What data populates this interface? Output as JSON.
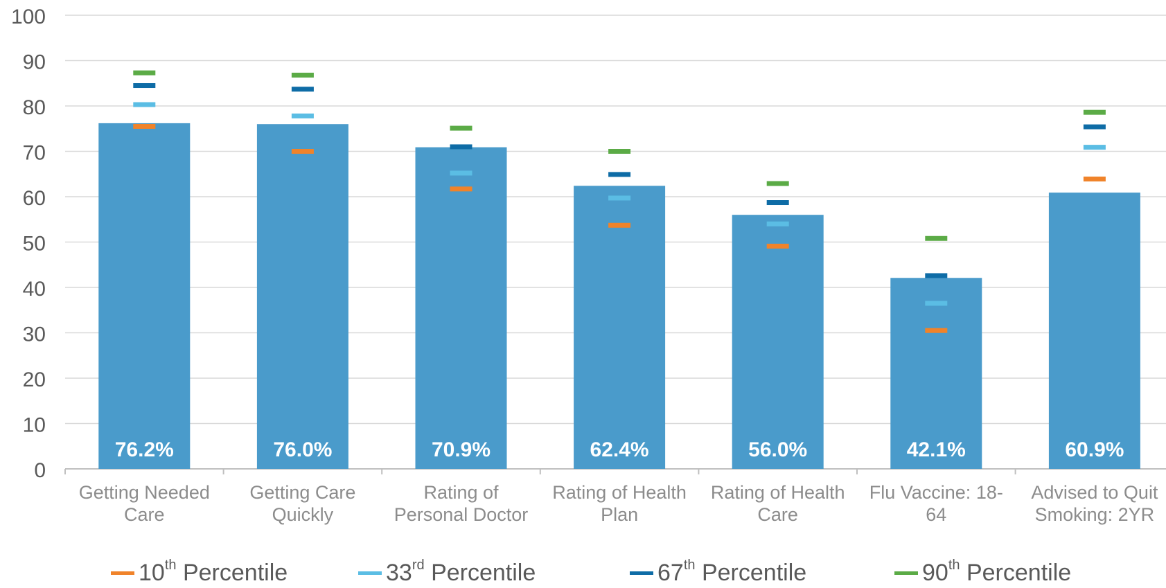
{
  "chart_data": {
    "type": "bar",
    "categories": [
      "Getting Needed Care",
      "Getting Care Quickly",
      "Rating of Personal Doctor",
      "Rating of Health Plan",
      "Rating of Health Care",
      "Flu Vaccine: 18-64",
      "Advised to Quit Smoking: 2YR"
    ],
    "category_lines": [
      [
        "Getting Needed",
        "Care"
      ],
      [
        "Getting Care",
        "Quickly"
      ],
      [
        "Rating of",
        "Personal Doctor"
      ],
      [
        "Rating of Health",
        "Plan"
      ],
      [
        "Rating of Health",
        "Care"
      ],
      [
        "Flu Vaccine: 18-",
        "64"
      ],
      [
        "Advised to Quit",
        "Smoking: 2YR"
      ]
    ],
    "values": [
      76.2,
      76.0,
      70.9,
      62.4,
      56.0,
      42.1,
      60.9
    ],
    "data_labels": [
      "76.2%",
      "76.0%",
      "70.9%",
      "62.4%",
      "56.0%",
      "42.1%",
      "60.9%"
    ],
    "bar_color": "#4a9bcb",
    "ylim": [
      0,
      100
    ],
    "yticks": [
      0,
      10,
      20,
      30,
      40,
      50,
      60,
      70,
      80,
      90,
      100
    ],
    "grid": true,
    "legend_position": "bottom",
    "benchmarks": [
      {
        "name": "10th Percentile",
        "ordinal": "10",
        "suffix": "th",
        "text": " Percentile",
        "color": "#f0832a",
        "values": [
          75.5,
          70.0,
          61.7,
          53.7,
          49.1,
          30.5,
          63.9
        ]
      },
      {
        "name": "33rd Percentile",
        "ordinal": "33",
        "suffix": "rd",
        "text": " Percentile",
        "color": "#5bbde4",
        "values": [
          80.3,
          77.8,
          65.2,
          59.7,
          54.0,
          36.5,
          70.9
        ]
      },
      {
        "name": "67th Percentile",
        "ordinal": "67",
        "suffix": "th",
        "text": " Percentile",
        "color": "#0e6ca6",
        "values": [
          84.5,
          83.7,
          71.0,
          64.9,
          58.7,
          42.6,
          75.4
        ]
      },
      {
        "name": "90th Percentile",
        "ordinal": "90",
        "suffix": "th",
        "text": " Percentile",
        "color": "#5bab46",
        "values": [
          87.3,
          86.8,
          75.1,
          70.0,
          62.9,
          50.8,
          78.6
        ]
      }
    ]
  }
}
